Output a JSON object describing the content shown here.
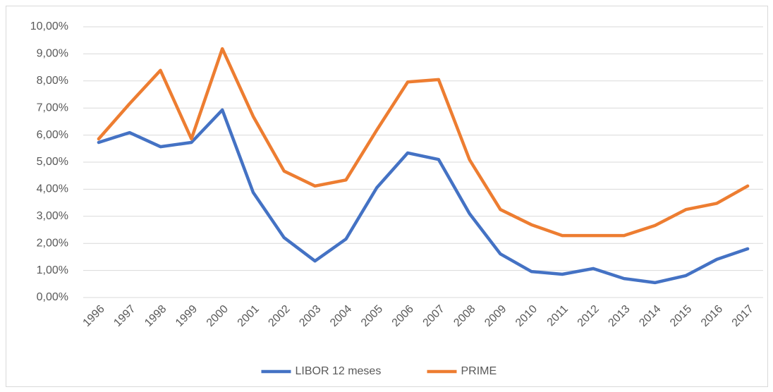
{
  "chart_data": {
    "type": "line",
    "categories": [
      "1996",
      "1997",
      "1998",
      "1999",
      "2000",
      "2001",
      "2002",
      "2003",
      "2004",
      "2005",
      "2006",
      "2007",
      "2008",
      "2009",
      "2010",
      "2011",
      "2012",
      "2013",
      "2014",
      "2015",
      "2016",
      "2017"
    ],
    "series": [
      {
        "name": "LIBOR 12 meses",
        "color": "#4472c4",
        "values": [
          5.73,
          6.09,
          5.57,
          5.73,
          6.93,
          3.88,
          2.21,
          1.35,
          2.16,
          4.06,
          5.34,
          5.1,
          3.1,
          1.61,
          0.96,
          0.86,
          1.07,
          0.7,
          0.55,
          0.81,
          1.41,
          1.8
        ]
      },
      {
        "name": "PRIME",
        "color": "#ed7d31",
        "values": [
          5.86,
          7.16,
          8.39,
          5.86,
          9.19,
          6.69,
          4.67,
          4.12,
          4.34,
          6.19,
          7.96,
          8.05,
          5.09,
          3.25,
          2.69,
          2.29,
          2.29,
          2.29,
          2.66,
          3.25,
          3.48,
          4.12
        ]
      }
    ],
    "ylim": [
      0,
      10
    ],
    "yticks": [
      {
        "value": 0,
        "label": "0,00%"
      },
      {
        "value": 1,
        "label": "1,00%"
      },
      {
        "value": 2,
        "label": "2,00%"
      },
      {
        "value": 3,
        "label": "3,00%"
      },
      {
        "value": 4,
        "label": "4,00%"
      },
      {
        "value": 5,
        "label": "5,00%"
      },
      {
        "value": 6,
        "label": "6,00%"
      },
      {
        "value": 7,
        "label": "7,00%"
      },
      {
        "value": 8,
        "label": "8,00%"
      },
      {
        "value": 9,
        "label": "9,00%"
      },
      {
        "value": 10,
        "label": "10,00%"
      }
    ],
    "grid": true,
    "legend": "bottom"
  }
}
